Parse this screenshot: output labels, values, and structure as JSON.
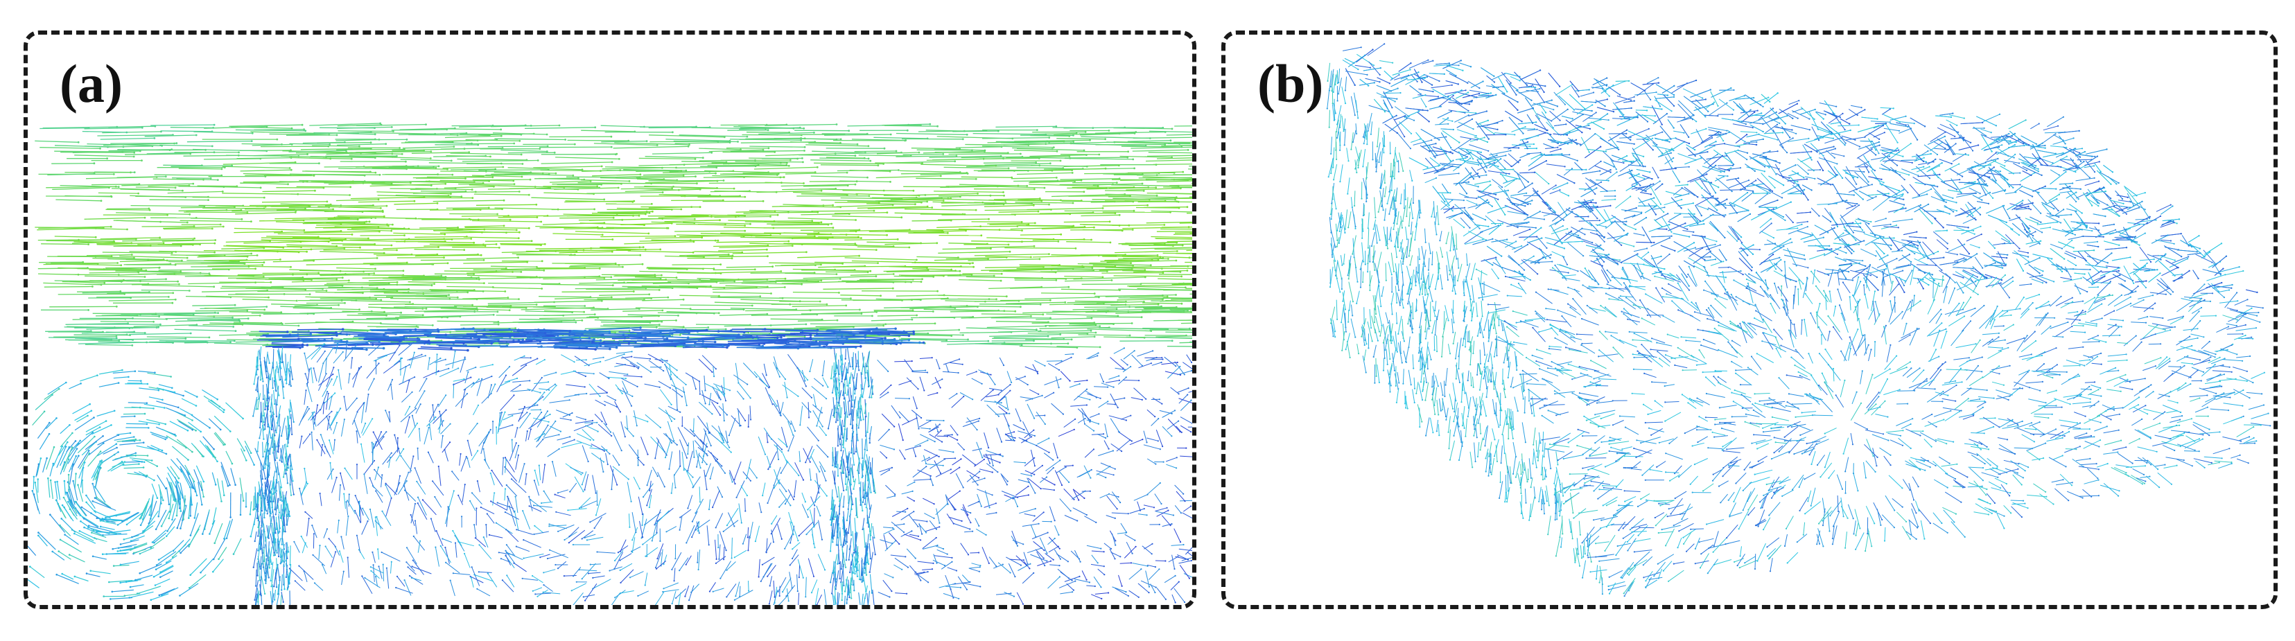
{
  "panels": [
    {
      "label": "(a)"
    },
    {
      "label": "(b)"
    }
  ],
  "colors": {
    "fast_flow": "#7fe02a",
    "mid_flow": "#2ec7e6",
    "slow_flow": "#2a3fd6",
    "border": "#1a1a1a"
  }
}
